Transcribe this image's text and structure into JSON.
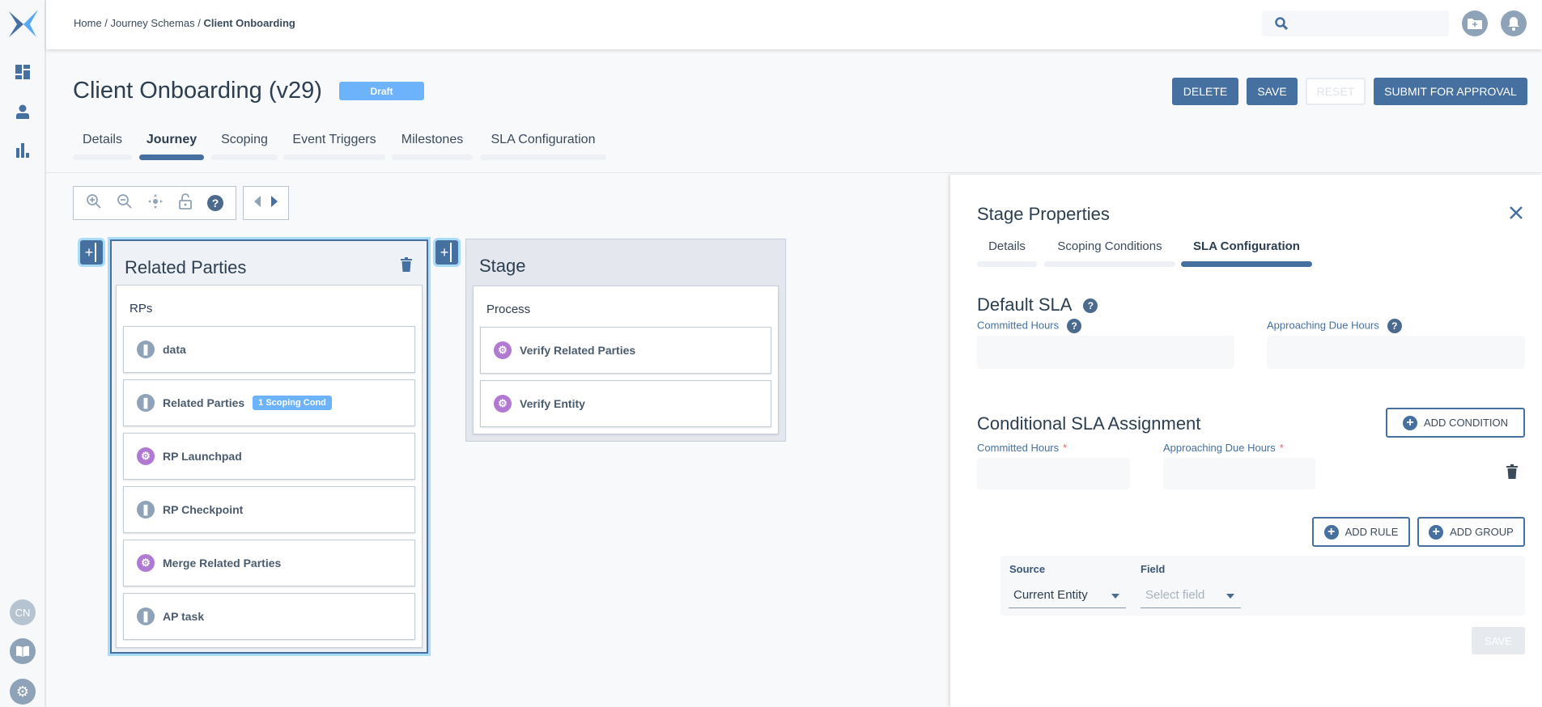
{
  "app": {
    "brand_color": "#46709f",
    "accent": "#6cb3fb"
  },
  "sidebar": {
    "items": [
      {
        "icon": "dashboard-icon"
      },
      {
        "icon": "user-icon"
      },
      {
        "icon": "bar-chart-icon"
      }
    ],
    "avatar": "CN",
    "bottom": [
      {
        "icon": "book-icon"
      },
      {
        "icon": "gear-icon"
      }
    ]
  },
  "header": {
    "breadcrumb": {
      "home": "Home",
      "sep": " / ",
      "schemas": "Journey Schemas",
      "current": "Client Onboarding"
    },
    "search_placeholder": ""
  },
  "page": {
    "title": "Client Onboarding (v29)",
    "status": "Draft",
    "buttons": {
      "delete": "DELETE",
      "save": "SAVE",
      "reset": "RESET",
      "submit": "SUBMIT FOR APPROVAL"
    },
    "tabs": [
      {
        "label": "Details"
      },
      {
        "label": "Journey"
      },
      {
        "label": "Scoping"
      },
      {
        "label": "Event Triggers"
      },
      {
        "label": "Milestones"
      },
      {
        "label": "SLA Configuration"
      }
    ],
    "active_tab": "Journey"
  },
  "canvas": {
    "stages": [
      {
        "title": "Related Parties",
        "group": "RPs",
        "selected": true,
        "tasks": [
          {
            "label": "data",
            "type": "checkpoint"
          },
          {
            "label": "Related Parties",
            "type": "checkpoint",
            "badge": "1 Scoping Cond"
          },
          {
            "label": "RP Launchpad",
            "type": "process"
          },
          {
            "label": "RP Checkpoint",
            "type": "checkpoint"
          },
          {
            "label": "Merge Related Parties",
            "type": "process"
          },
          {
            "label": "AP task",
            "type": "checkpoint"
          }
        ]
      },
      {
        "title": "Stage",
        "group": "Process",
        "tasks": [
          {
            "label": "Verify Related Parties",
            "type": "process"
          },
          {
            "label": "Verify Entity",
            "type": "process"
          }
        ]
      }
    ]
  },
  "panel": {
    "title": "Stage Properties",
    "tabs": [
      {
        "label": "Details"
      },
      {
        "label": "Scoping Conditions"
      },
      {
        "label": "SLA Configuration"
      }
    ],
    "active_tab": "SLA Configuration",
    "default_sla": {
      "heading": "Default SLA",
      "committed_label": "Committed Hours",
      "approaching_label": "Approaching Due Hours",
      "committed_value": "",
      "approaching_value": ""
    },
    "conditional": {
      "heading": "Conditional SLA Assignment",
      "add_condition": "ADD CONDITION",
      "committed_label": "Committed Hours",
      "approaching_label": "Approaching Due Hours",
      "required_mark": "*",
      "add_rule": "ADD RULE",
      "add_group": "ADD GROUP",
      "rule": {
        "source_label": "Source",
        "source_value": "Current Entity",
        "field_label": "Field",
        "field_placeholder": "Select field"
      },
      "save": "SAVE"
    }
  }
}
